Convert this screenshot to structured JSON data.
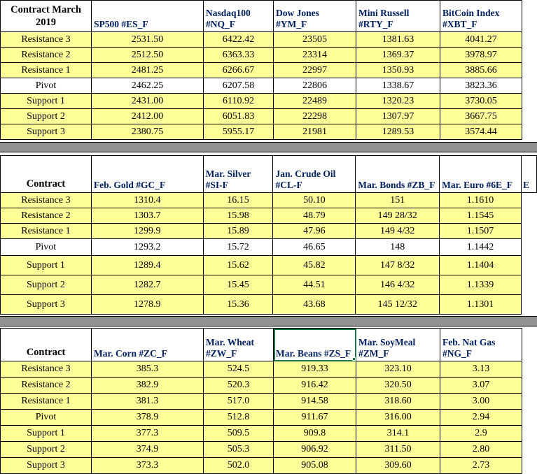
{
  "colors": {
    "cell_fill_yellow": "#FFFF99",
    "separator_gray": "#919191",
    "ticker_text_navy": "#002060",
    "selection_green": "#217346",
    "border_black": "#000000"
  },
  "selection": {
    "table": 2,
    "column": 2
  },
  "tables": [
    {
      "id": "stock-indices",
      "corner_label": "Contract March\n2019",
      "columns": [
        "SP500 #ES_F",
        "Nasdaq100\n#NQ_F",
        "Dow Jones\n#YM_F",
        "Mini Russell\n#RTY_F",
        "BitCoin Index\n#XBT_F"
      ],
      "rows": [
        {
          "label": "Resistance 3",
          "fill": "yellow",
          "values": [
            "2531.50",
            "6422.42",
            "23505",
            "1381.63",
            "4041.27"
          ]
        },
        {
          "label": "Resistance 2",
          "fill": "yellow",
          "values": [
            "2512.50",
            "6363.33",
            "23314",
            "1369.37",
            "3978.97"
          ]
        },
        {
          "label": "Resistance 1",
          "fill": "yellow",
          "values": [
            "2481.25",
            "6266.67",
            "22997",
            "1350.93",
            "3885.66"
          ]
        },
        {
          "label": "Pivot",
          "fill": "white",
          "values": [
            "2462.25",
            "6207.58",
            "22806",
            "1338.67",
            "3823.36"
          ]
        },
        {
          "label": "Support 1",
          "fill": "yellow",
          "values": [
            "2431.00",
            "6110.92",
            "22489",
            "1320.23",
            "3730.05"
          ]
        },
        {
          "label": "Support 2",
          "fill": "yellow",
          "values": [
            "2412.00",
            "6051.83",
            "22298",
            "1307.97",
            "3667.75"
          ]
        },
        {
          "label": "Support 3",
          "fill": "yellow",
          "values": [
            "2380.75",
            "5955.17",
            "21981",
            "1289.53",
            "3574.44"
          ]
        }
      ]
    },
    {
      "id": "metals-energy-bonds-currency",
      "corner_label": "Contract",
      "overflow_text": "E",
      "columns": [
        "Feb. Gold #GC_F",
        "Mar. Silver\n#SI-F",
        "Jan. Crude Oil\n#CL-F",
        "Mar. Bonds  #ZB_F",
        "Mar.  Euro  #6E_F"
      ],
      "rows": [
        {
          "label": "Resistance 3",
          "fill": "yellow",
          "values": [
            "1310.4",
            "16.15",
            "50.10",
            "151",
            "1.1610"
          ]
        },
        {
          "label": "Resistance 2",
          "fill": "yellow",
          "values": [
            "1303.7",
            "15.98",
            "48.79",
            "149 28/32",
            "1.1545"
          ]
        },
        {
          "label": "Resistance 1",
          "fill": "yellow",
          "values": [
            "1299.9",
            "15.89",
            "47.96",
            "149  4/32",
            "1.1507"
          ]
        },
        {
          "label": "Pivot",
          "fill": "white",
          "values": [
            "1293.2",
            "15.72",
            "46.65",
            "148",
            "1.1442"
          ]
        },
        {
          "label": "Support 1",
          "fill": "yellow",
          "values": [
            "1289.4",
            "15.62",
            "45.82",
            "147  8/32",
            "1.1404"
          ]
        },
        {
          "label": "Support 2",
          "fill": "yellow",
          "values": [
            "1282.7",
            "15.45",
            "44.51",
            "146  4/32",
            "1.1339"
          ]
        },
        {
          "label": "Support 3",
          "fill": "yellow",
          "values": [
            "1278.9",
            "15.36",
            "43.68",
            "145 12/32",
            "1.1301"
          ]
        }
      ]
    },
    {
      "id": "grains-natgas",
      "corner_label": "Contract",
      "columns": [
        "Mar.  Corn #ZC_F",
        "Mar. Wheat\n#ZW_F",
        "Mar. Beans #ZS_F",
        "Mar. SoyMeal\n#ZM_F",
        "Feb. Nat Gas\n#NG_F"
      ],
      "rows": [
        {
          "label": "Resistance 3",
          "fill": "yellow",
          "values": [
            "385.3",
            "524.5",
            "919.33",
            "323.10",
            "3.13"
          ]
        },
        {
          "label": "Resistance 2",
          "fill": "yellow",
          "values": [
            "382.9",
            "520.3",
            "916.42",
            "320.50",
            "3.07"
          ]
        },
        {
          "label": "Resistance 1",
          "fill": "yellow",
          "values": [
            "381.3",
            "517.0",
            "914.58",
            "318.60",
            "3.00"
          ]
        },
        {
          "label": "Pivot",
          "fill": "yellow",
          "values": [
            "378.9",
            "512.8",
            "911.67",
            "316.00",
            "2.94"
          ]
        },
        {
          "label": "Support 1",
          "fill": "yellow",
          "values": [
            "377.3",
            "509.5",
            "909.8",
            "314.1",
            "2.9"
          ]
        },
        {
          "label": "Support 2",
          "fill": "yellow",
          "values": [
            "374.9",
            "505.3",
            "906.92",
            "311.50",
            "2.80"
          ]
        },
        {
          "label": "Support 3",
          "fill": "yellow",
          "values": [
            "373.3",
            "502.0",
            "905.08",
            "309.60",
            "2.73"
          ]
        }
      ]
    }
  ]
}
